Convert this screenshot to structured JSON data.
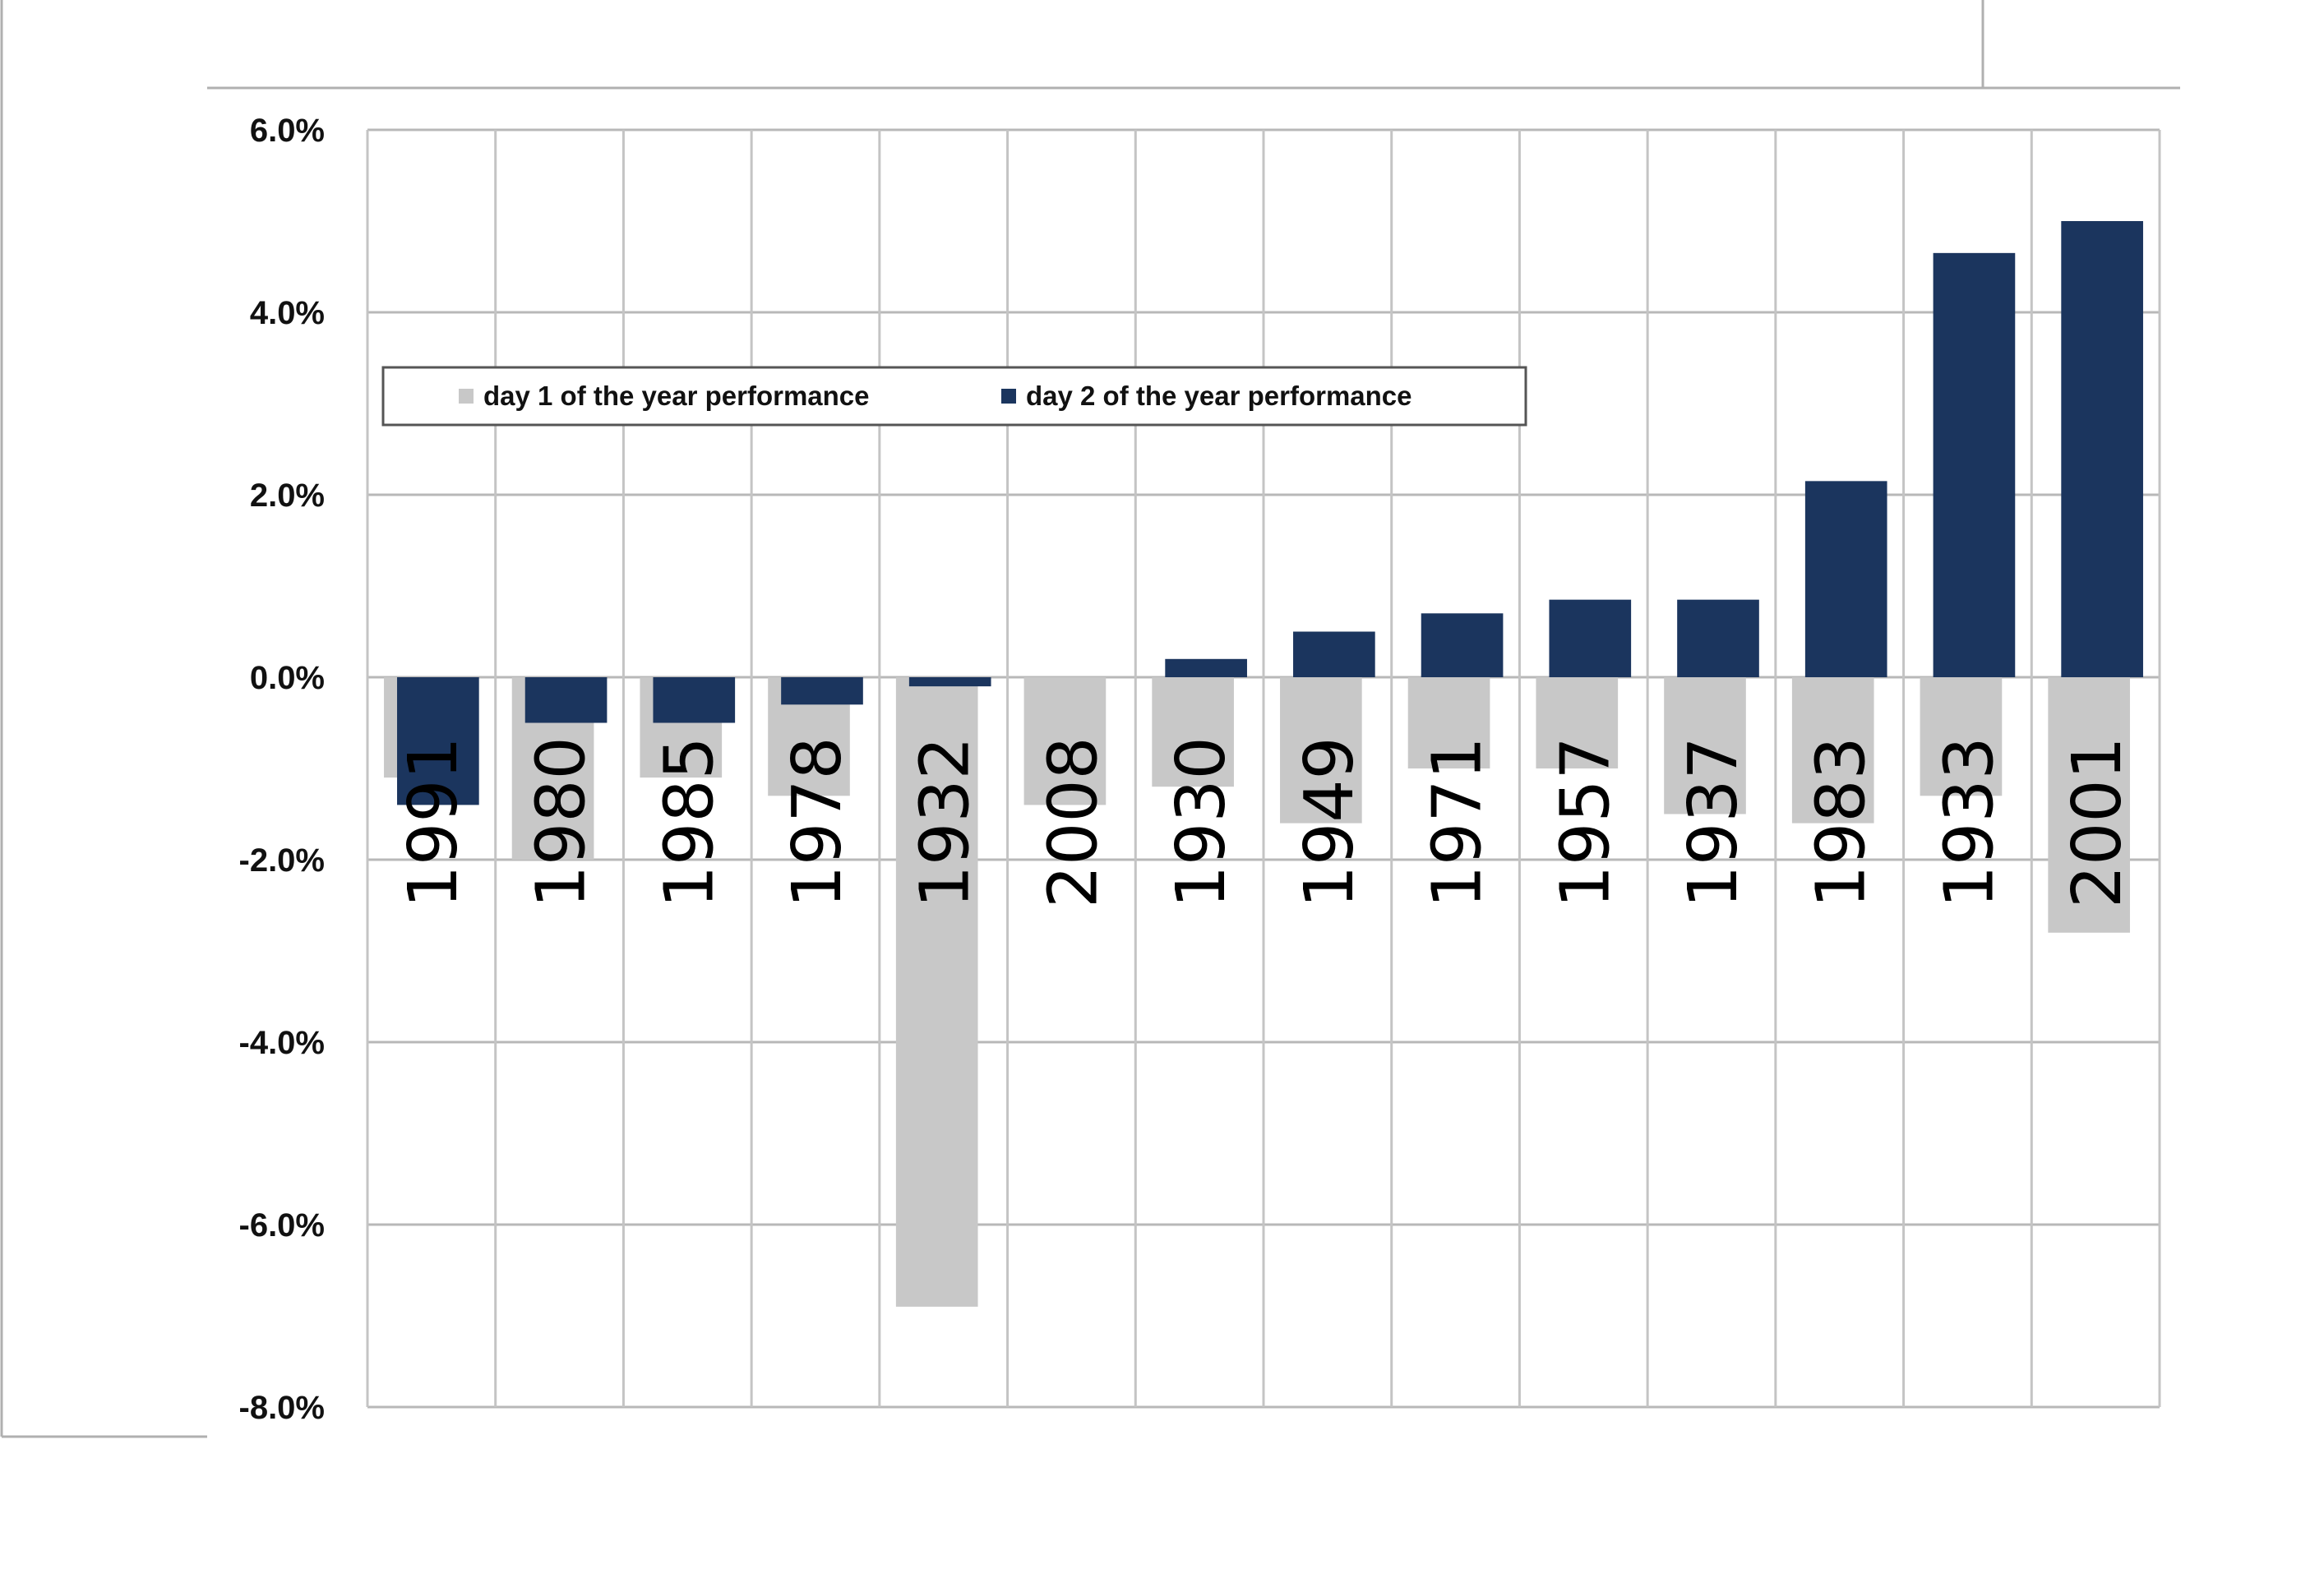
{
  "chart_data": {
    "type": "bar",
    "title": "",
    "xlabel": "",
    "ylabel": "",
    "categories": [
      "1991",
      "1980",
      "1985",
      "1978",
      "1932",
      "2008",
      "1930",
      "1949",
      "1971",
      "1957",
      "1937",
      "1983",
      "1933",
      "2001"
    ],
    "series": [
      {
        "name": "day 1 of the year performance",
        "color": "#c8c8c8",
        "values": [
          -1.1,
          -2.0,
          -1.1,
          -1.3,
          -6.9,
          -1.4,
          -1.2,
          -1.6,
          -1.0,
          -1.0,
          -1.5,
          -1.6,
          -1.3,
          -2.8
        ]
      },
      {
        "name": "day 2 of the year performance",
        "color": "#1b355e",
        "values": [
          -1.4,
          -0.5,
          -0.5,
          -0.3,
          -0.1,
          0.0,
          0.2,
          0.5,
          0.7,
          0.85,
          0.85,
          2.15,
          4.65,
          5.0
        ]
      }
    ],
    "ylim": [
      -8.0,
      6.0
    ],
    "yticks": [
      "6.0%",
      "4.0%",
      "2.0%",
      "0.0%",
      "-2.0%",
      "-4.0%",
      "-6.0%",
      "-8.0%"
    ],
    "ytick_values": [
      6,
      4,
      2,
      0,
      -2,
      -4,
      -6,
      -8
    ],
    "grid": true,
    "legend": "top-left"
  }
}
